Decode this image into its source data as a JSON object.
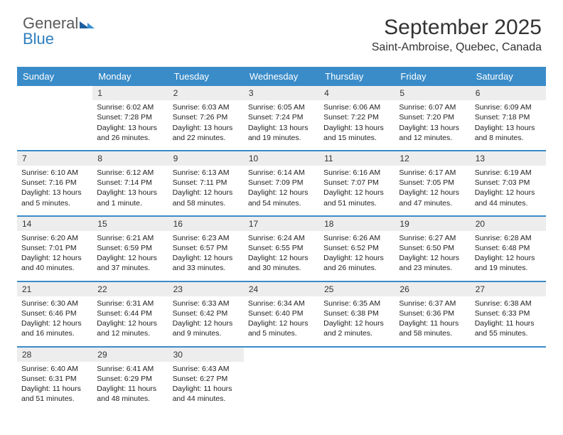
{
  "brand": {
    "part1": "General",
    "part2": "Blue"
  },
  "title": "September 2025",
  "location": "Saint-Ambroise, Quebec, Canada",
  "colors": {
    "header_bg": "#3a8cc9",
    "header_text": "#ffffff",
    "daynum_bg": "#ededed",
    "divider": "#3a8cc9",
    "text": "#222222",
    "brand_gray": "#5a5a5a",
    "brand_blue": "#2e7fbf",
    "page_bg": "#ffffff"
  },
  "fonts": {
    "title_size_pt": 22,
    "body_size_pt": 8,
    "header_size_pt": 10
  },
  "weekdays": [
    "Sunday",
    "Monday",
    "Tuesday",
    "Wednesday",
    "Thursday",
    "Friday",
    "Saturday"
  ],
  "weeks": [
    [
      {
        "num": "",
        "sunrise": "",
        "sunset": "",
        "daylight": ""
      },
      {
        "num": "1",
        "sunrise": "Sunrise: 6:02 AM",
        "sunset": "Sunset: 7:28 PM",
        "daylight": "Daylight: 13 hours and 26 minutes."
      },
      {
        "num": "2",
        "sunrise": "Sunrise: 6:03 AM",
        "sunset": "Sunset: 7:26 PM",
        "daylight": "Daylight: 13 hours and 22 minutes."
      },
      {
        "num": "3",
        "sunrise": "Sunrise: 6:05 AM",
        "sunset": "Sunset: 7:24 PM",
        "daylight": "Daylight: 13 hours and 19 minutes."
      },
      {
        "num": "4",
        "sunrise": "Sunrise: 6:06 AM",
        "sunset": "Sunset: 7:22 PM",
        "daylight": "Daylight: 13 hours and 15 minutes."
      },
      {
        "num": "5",
        "sunrise": "Sunrise: 6:07 AM",
        "sunset": "Sunset: 7:20 PM",
        "daylight": "Daylight: 13 hours and 12 minutes."
      },
      {
        "num": "6",
        "sunrise": "Sunrise: 6:09 AM",
        "sunset": "Sunset: 7:18 PM",
        "daylight": "Daylight: 13 hours and 8 minutes."
      }
    ],
    [
      {
        "num": "7",
        "sunrise": "Sunrise: 6:10 AM",
        "sunset": "Sunset: 7:16 PM",
        "daylight": "Daylight: 13 hours and 5 minutes."
      },
      {
        "num": "8",
        "sunrise": "Sunrise: 6:12 AM",
        "sunset": "Sunset: 7:14 PM",
        "daylight": "Daylight: 13 hours and 1 minute."
      },
      {
        "num": "9",
        "sunrise": "Sunrise: 6:13 AM",
        "sunset": "Sunset: 7:11 PM",
        "daylight": "Daylight: 12 hours and 58 minutes."
      },
      {
        "num": "10",
        "sunrise": "Sunrise: 6:14 AM",
        "sunset": "Sunset: 7:09 PM",
        "daylight": "Daylight: 12 hours and 54 minutes."
      },
      {
        "num": "11",
        "sunrise": "Sunrise: 6:16 AM",
        "sunset": "Sunset: 7:07 PM",
        "daylight": "Daylight: 12 hours and 51 minutes."
      },
      {
        "num": "12",
        "sunrise": "Sunrise: 6:17 AM",
        "sunset": "Sunset: 7:05 PM",
        "daylight": "Daylight: 12 hours and 47 minutes."
      },
      {
        "num": "13",
        "sunrise": "Sunrise: 6:19 AM",
        "sunset": "Sunset: 7:03 PM",
        "daylight": "Daylight: 12 hours and 44 minutes."
      }
    ],
    [
      {
        "num": "14",
        "sunrise": "Sunrise: 6:20 AM",
        "sunset": "Sunset: 7:01 PM",
        "daylight": "Daylight: 12 hours and 40 minutes."
      },
      {
        "num": "15",
        "sunrise": "Sunrise: 6:21 AM",
        "sunset": "Sunset: 6:59 PM",
        "daylight": "Daylight: 12 hours and 37 minutes."
      },
      {
        "num": "16",
        "sunrise": "Sunrise: 6:23 AM",
        "sunset": "Sunset: 6:57 PM",
        "daylight": "Daylight: 12 hours and 33 minutes."
      },
      {
        "num": "17",
        "sunrise": "Sunrise: 6:24 AM",
        "sunset": "Sunset: 6:55 PM",
        "daylight": "Daylight: 12 hours and 30 minutes."
      },
      {
        "num": "18",
        "sunrise": "Sunrise: 6:26 AM",
        "sunset": "Sunset: 6:52 PM",
        "daylight": "Daylight: 12 hours and 26 minutes."
      },
      {
        "num": "19",
        "sunrise": "Sunrise: 6:27 AM",
        "sunset": "Sunset: 6:50 PM",
        "daylight": "Daylight: 12 hours and 23 minutes."
      },
      {
        "num": "20",
        "sunrise": "Sunrise: 6:28 AM",
        "sunset": "Sunset: 6:48 PM",
        "daylight": "Daylight: 12 hours and 19 minutes."
      }
    ],
    [
      {
        "num": "21",
        "sunrise": "Sunrise: 6:30 AM",
        "sunset": "Sunset: 6:46 PM",
        "daylight": "Daylight: 12 hours and 16 minutes."
      },
      {
        "num": "22",
        "sunrise": "Sunrise: 6:31 AM",
        "sunset": "Sunset: 6:44 PM",
        "daylight": "Daylight: 12 hours and 12 minutes."
      },
      {
        "num": "23",
        "sunrise": "Sunrise: 6:33 AM",
        "sunset": "Sunset: 6:42 PM",
        "daylight": "Daylight: 12 hours and 9 minutes."
      },
      {
        "num": "24",
        "sunrise": "Sunrise: 6:34 AM",
        "sunset": "Sunset: 6:40 PM",
        "daylight": "Daylight: 12 hours and 5 minutes."
      },
      {
        "num": "25",
        "sunrise": "Sunrise: 6:35 AM",
        "sunset": "Sunset: 6:38 PM",
        "daylight": "Daylight: 12 hours and 2 minutes."
      },
      {
        "num": "26",
        "sunrise": "Sunrise: 6:37 AM",
        "sunset": "Sunset: 6:36 PM",
        "daylight": "Daylight: 11 hours and 58 minutes."
      },
      {
        "num": "27",
        "sunrise": "Sunrise: 6:38 AM",
        "sunset": "Sunset: 6:33 PM",
        "daylight": "Daylight: 11 hours and 55 minutes."
      }
    ],
    [
      {
        "num": "28",
        "sunrise": "Sunrise: 6:40 AM",
        "sunset": "Sunset: 6:31 PM",
        "daylight": "Daylight: 11 hours and 51 minutes."
      },
      {
        "num": "29",
        "sunrise": "Sunrise: 6:41 AM",
        "sunset": "Sunset: 6:29 PM",
        "daylight": "Daylight: 11 hours and 48 minutes."
      },
      {
        "num": "30",
        "sunrise": "Sunrise: 6:43 AM",
        "sunset": "Sunset: 6:27 PM",
        "daylight": "Daylight: 11 hours and 44 minutes."
      },
      {
        "num": "",
        "sunrise": "",
        "sunset": "",
        "daylight": ""
      },
      {
        "num": "",
        "sunrise": "",
        "sunset": "",
        "daylight": ""
      },
      {
        "num": "",
        "sunrise": "",
        "sunset": "",
        "daylight": ""
      },
      {
        "num": "",
        "sunrise": "",
        "sunset": "",
        "daylight": ""
      }
    ]
  ]
}
